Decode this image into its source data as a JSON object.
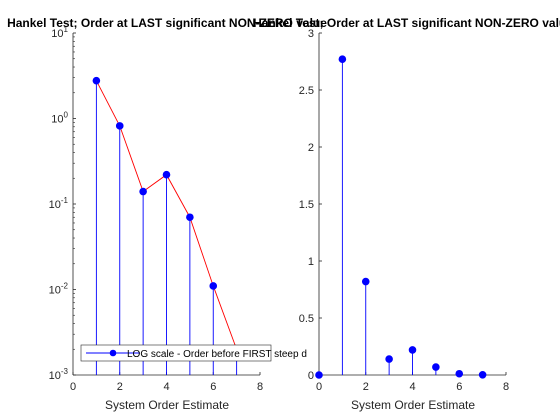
{
  "colors": {
    "stem": "#0000ff",
    "marker": "#0000ff",
    "line": "#ff0000",
    "axis": "#262626"
  },
  "chart_data": [
    {
      "type": "line",
      "scale": "log",
      "title": "Hankel Test; Order at LAST significant NON-ZERO value",
      "xlabel": "System Order Estimate",
      "xlim": [
        0,
        8
      ],
      "ylim": [
        0.001,
        10
      ],
      "xticks": [
        0,
        2,
        4,
        6,
        8
      ],
      "yticks": [
        {
          "base": "10",
          "exp": "1"
        },
        {
          "base": "10",
          "exp": "0"
        },
        {
          "base": "10",
          "exp": "-1"
        },
        {
          "base": "10",
          "exp": "-2"
        },
        {
          "base": "10",
          "exp": "-3"
        }
      ],
      "x": [
        1,
        2,
        3,
        4,
        5,
        6,
        7
      ],
      "values": [
        2.77,
        0.82,
        0.14,
        0.22,
        0.07,
        0.011,
        0.002
      ],
      "legend": "LOG scale - Order before FIRST steep d",
      "legend_position": "bottom"
    },
    {
      "type": "stem",
      "title": "Hankel Test; Order at LAST significant NON-ZERO value",
      "xlabel": "System Order Estimate",
      "xlim": [
        0,
        8
      ],
      "ylim": [
        0,
        3
      ],
      "xticks": [
        0,
        2,
        4,
        6,
        8
      ],
      "yticks": [
        "0",
        "0.5",
        "1",
        "1.5",
        "2",
        "2.5",
        "3"
      ],
      "x": [
        0,
        1,
        2,
        3,
        4,
        5,
        6,
        7
      ],
      "values": [
        0,
        2.77,
        0.82,
        0.14,
        0.22,
        0.07,
        0.011,
        0.002
      ]
    }
  ]
}
